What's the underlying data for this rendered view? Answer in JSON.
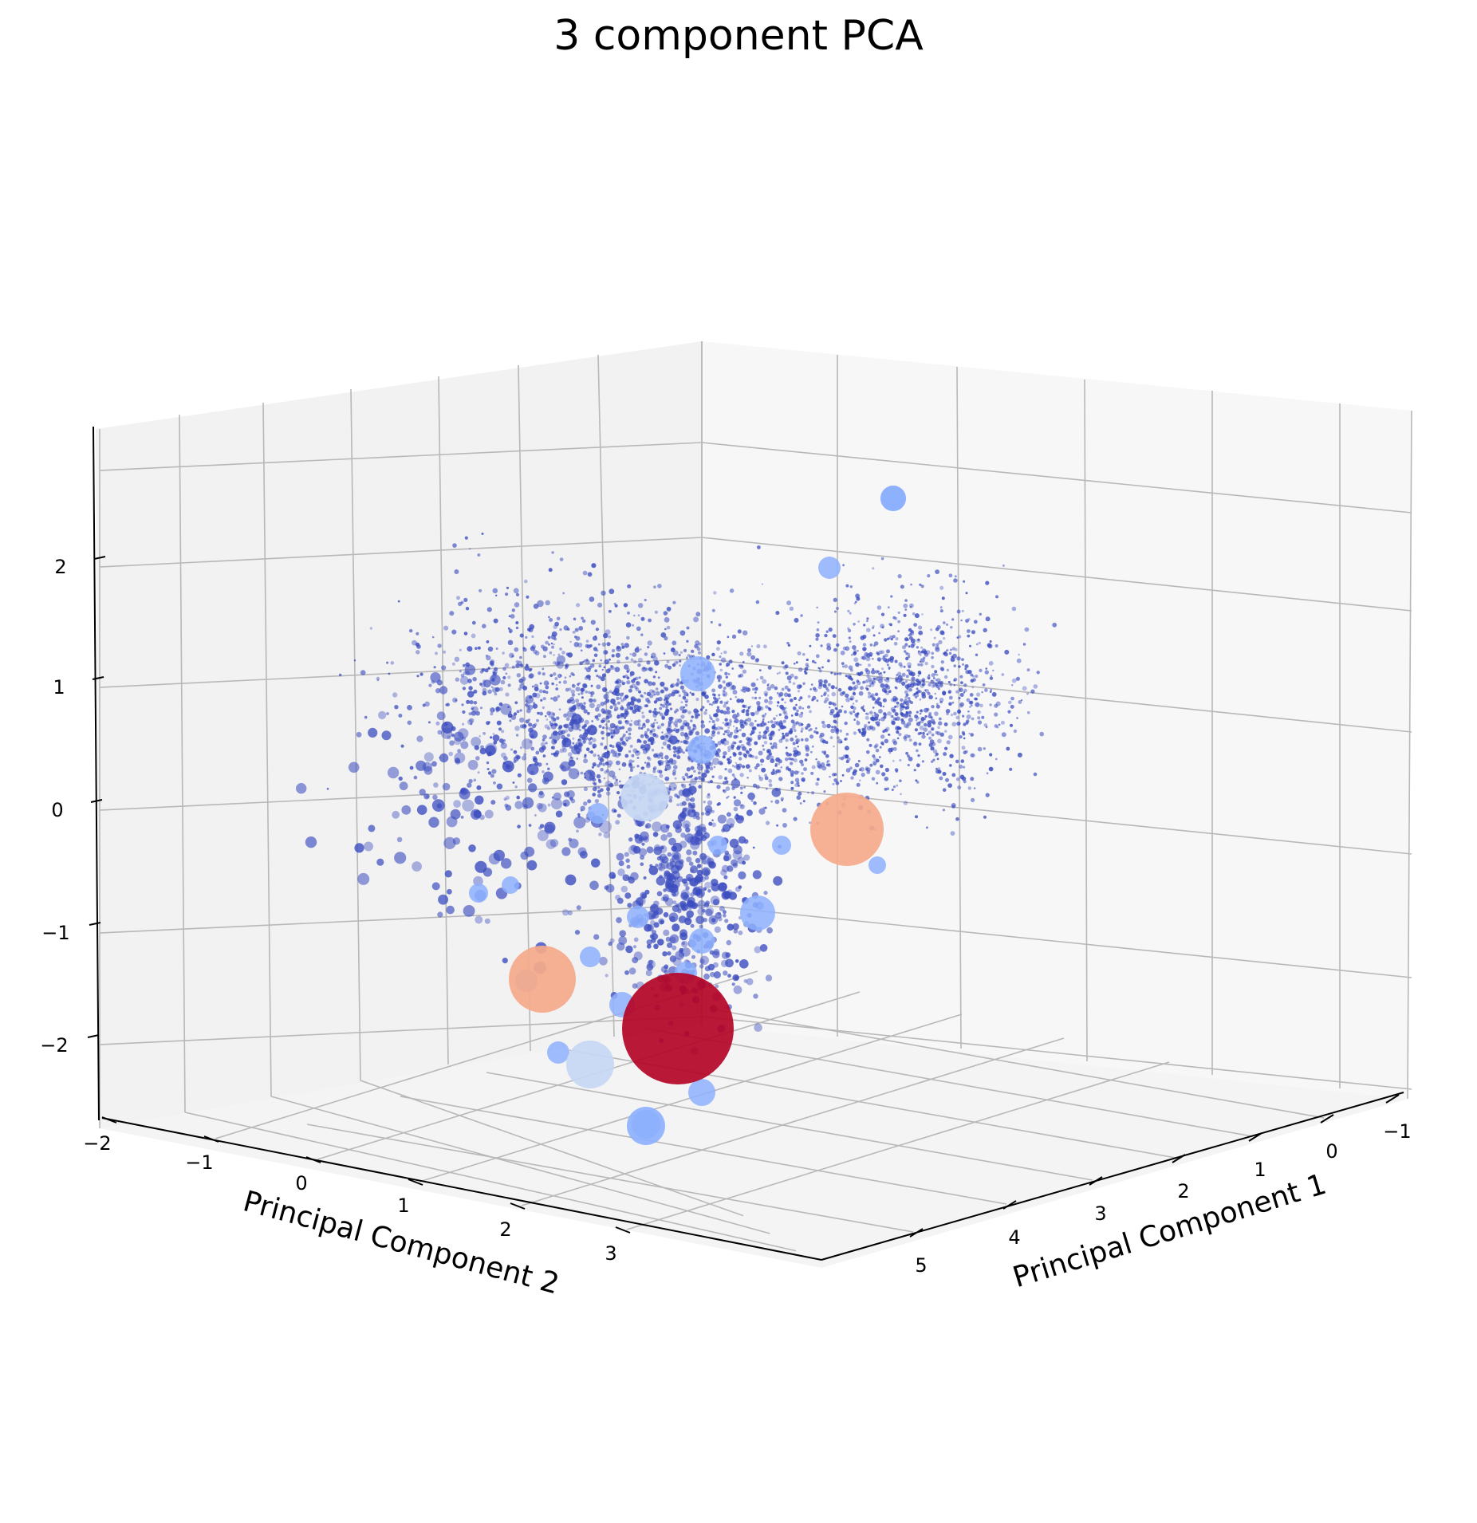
{
  "chart_data": {
    "type": "scatter",
    "title": "3 component PCA",
    "xlabel": "Principal Component 1",
    "ylabel": "Principal Component 2",
    "zlabel": "",
    "xlim": [
      -1.5,
      6
    ],
    "ylim": [
      -2.2,
      3.6
    ],
    "zlim": [
      -2.5,
      3
    ],
    "x_ticks": [
      -1,
      0,
      1,
      2,
      3,
      4,
      5
    ],
    "y_ticks": [
      -2,
      -1,
      0,
      1,
      2,
      3
    ],
    "z_ticks": [
      -2,
      -1,
      0,
      1,
      2
    ],
    "x_tick_labels": [
      "−1",
      "0",
      "1",
      "2",
      "3",
      "4",
      "5"
    ],
    "y_tick_labels": [
      "−2",
      "−1",
      "0",
      "1",
      "2",
      "3"
    ],
    "z_tick_labels": [
      "−2",
      "−1",
      "0",
      "1",
      "2"
    ],
    "grid": true,
    "colormap": "coolwarm",
    "colors": {
      "dense_cluster": "#3b4cc0",
      "light_blue": "#8db0fe",
      "pale_blue": "#c5d7f3",
      "salmon": "#f5a98a",
      "dark_red": "#b40426"
    },
    "highlighted_points": [
      {
        "x": 1.2,
        "y": 2.2,
        "z": -2.0,
        "color": "#b40426",
        "size": 60
      },
      {
        "x": 0.5,
        "y": -0.2,
        "z": 0.0,
        "color": "#f5a98a",
        "size": 40
      },
      {
        "x": 3.5,
        "y": 1.0,
        "z": -1.5,
        "color": "#f5a98a",
        "size": 35
      },
      {
        "x": 4.2,
        "y": 1.5,
        "z": -1.8,
        "color": "#c5d7f3",
        "size": 30
      },
      {
        "x": 2.0,
        "y": 0.8,
        "z": 0.3,
        "color": "#c5d7f3",
        "size": 30
      },
      {
        "x": 0.8,
        "y": 0.5,
        "z": 2.4,
        "color": "#8db0fe",
        "size": 18
      },
      {
        "x": 1.5,
        "y": 1.5,
        "z": -2.6,
        "color": "#8db0fe",
        "size": 22
      }
    ]
  }
}
